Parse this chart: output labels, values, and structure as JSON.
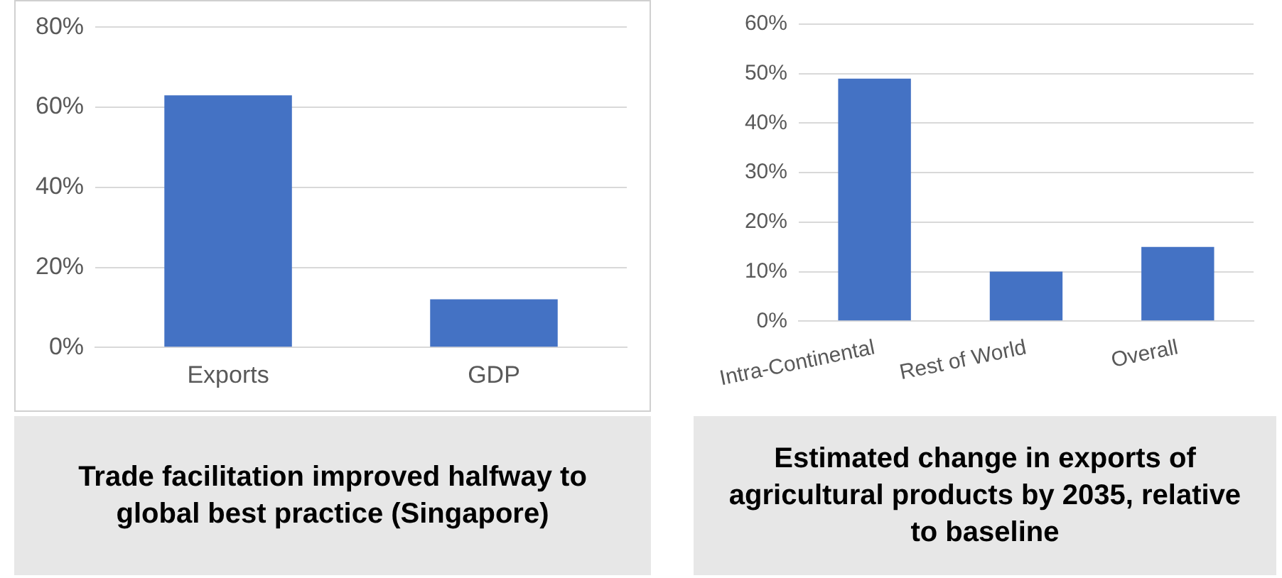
{
  "chart_data": [
    {
      "type": "bar",
      "title": "Trade facilitation improved halfway to global best practice (Singapore)",
      "categories": [
        "Exports",
        "GDP"
      ],
      "values": [
        63,
        12
      ],
      "color": "#4472c4",
      "ylim": [
        0,
        80
      ],
      "yticks": [
        {
          "value": 0,
          "label": "0%"
        },
        {
          "value": 20,
          "label": "20%"
        },
        {
          "value": 40,
          "label": "40%"
        },
        {
          "value": 60,
          "label": "60%"
        },
        {
          "value": 80,
          "label": "80%"
        }
      ],
      "grid": "y"
    },
    {
      "type": "bar",
      "title": "Estimated change in exports of agricultural products by 2035, relative to baseline",
      "categories": [
        "Intra-Continental",
        "Rest of World",
        "Overall"
      ],
      "values": [
        49,
        10,
        15
      ],
      "color": "#4472c4",
      "ylim": [
        0,
        60
      ],
      "yticks": [
        {
          "value": 0,
          "label": "0%"
        },
        {
          "value": 10,
          "label": "10%"
        },
        {
          "value": 20,
          "label": "20%"
        },
        {
          "value": 30,
          "label": "30%"
        },
        {
          "value": 40,
          "label": "40%"
        },
        {
          "value": 50,
          "label": "50%"
        },
        {
          "value": 60,
          "label": "60%"
        }
      ],
      "grid": "y"
    }
  ]
}
